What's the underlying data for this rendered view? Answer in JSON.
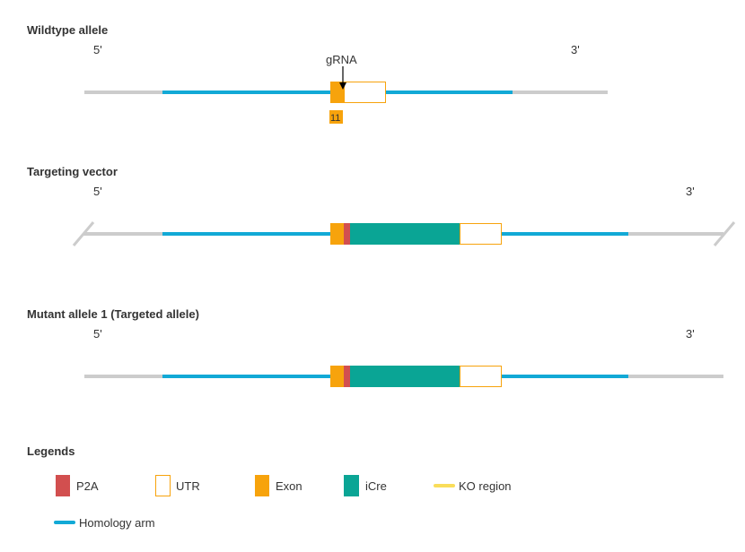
{
  "colors": {
    "backbone": "#cccccc",
    "homology": "#12a9d6",
    "exon": "#f7a30c",
    "utr_stroke": "#f7a30c",
    "p2a": "#d24f4f",
    "icre": "#0aa595",
    "ko": "#f9dd5a",
    "text": "#333333"
  },
  "wildtype": {
    "title": "Wildtype allele",
    "five_prime": "5'",
    "three_prime": "3'",
    "grna_label": "gRNA",
    "exon_number": "11"
  },
  "targeting_vector": {
    "title": "Targeting vector",
    "five_prime": "5'",
    "three_prime": "3'"
  },
  "mutant": {
    "title": "Mutant allele 1 (Targeted allele)",
    "five_prime": "5'",
    "three_prime": "3'"
  },
  "legends": {
    "title": "Legends",
    "p2a": "P2A",
    "utr": "UTR",
    "exon": "Exon",
    "icre": "iCre",
    "ko": "KO region",
    "homology": "Homology arm"
  }
}
